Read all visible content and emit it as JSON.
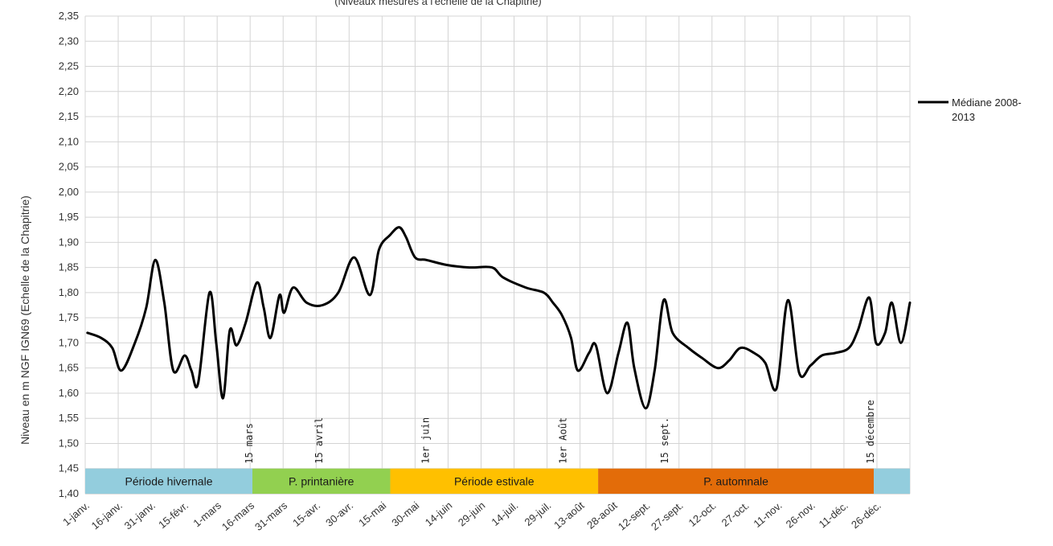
{
  "chart_data": {
    "type": "line",
    "title": "(Niveaux mesurés à l'échelle de la Chapitrie)",
    "ylabel": "Niveau en m NGF IGN69 (Echelle de la Chapitrie)",
    "xlabel": "",
    "ylim": [
      1.4,
      2.35
    ],
    "ytick_step": 0.05,
    "grid": true,
    "legend_position": "right",
    "x_tick_labels": [
      "1-janv.",
      "16-janv.",
      "31-janv.",
      "15-févr.",
      "1-mars",
      "16-mars",
      "31-mars",
      "15-avr.",
      "30-avr.",
      "15-mai",
      "30-mai",
      "14-juin",
      "29-juin",
      "14-juil.",
      "29-juil.",
      "13-août",
      "28-août",
      "12-sept.",
      "27-sept.",
      "12-oct.",
      "27-oct.",
      "11-nov.",
      "26-nov.",
      "11-déc.",
      "26-déc."
    ],
    "series": [
      {
        "name": "Médiane 2008-2013",
        "color": "#000000",
        "points": [
          [
            1,
            1.72
          ],
          [
            7,
            1.71
          ],
          [
            12,
            1.69
          ],
          [
            16,
            1.645
          ],
          [
            22,
            1.7
          ],
          [
            27,
            1.77
          ],
          [
            31,
            1.865
          ],
          [
            35,
            1.78
          ],
          [
            39,
            1.645
          ],
          [
            44,
            1.675
          ],
          [
            47,
            1.645
          ],
          [
            50,
            1.62
          ],
          [
            55,
            1.8
          ],
          [
            58,
            1.7
          ],
          [
            61,
            1.59
          ],
          [
            64,
            1.725
          ],
          [
            67,
            1.695
          ],
          [
            71,
            1.74
          ],
          [
            76,
            1.82
          ],
          [
            79,
            1.77
          ],
          [
            82,
            1.71
          ],
          [
            86,
            1.795
          ],
          [
            88,
            1.76
          ],
          [
            92,
            1.81
          ],
          [
            98,
            1.78
          ],
          [
            105,
            1.775
          ],
          [
            112,
            1.8
          ],
          [
            119,
            1.87
          ],
          [
            126,
            1.795
          ],
          [
            130,
            1.885
          ],
          [
            135,
            1.915
          ],
          [
            139,
            1.93
          ],
          [
            142,
            1.91
          ],
          [
            146,
            1.87
          ],
          [
            151,
            1.865
          ],
          [
            160,
            1.855
          ],
          [
            170,
            1.85
          ],
          [
            180,
            1.85
          ],
          [
            185,
            1.83
          ],
          [
            195,
            1.81
          ],
          [
            203,
            1.8
          ],
          [
            207,
            1.78
          ],
          [
            211,
            1.755
          ],
          [
            215,
            1.71
          ],
          [
            218,
            1.645
          ],
          [
            223,
            1.68
          ],
          [
            226,
            1.695
          ],
          [
            231,
            1.6
          ],
          [
            236,
            1.68
          ],
          [
            240,
            1.74
          ],
          [
            243,
            1.65
          ],
          [
            248,
            1.57
          ],
          [
            252,
            1.645
          ],
          [
            256,
            1.785
          ],
          [
            260,
            1.72
          ],
          [
            267,
            1.69
          ],
          [
            273,
            1.67
          ],
          [
            280,
            1.65
          ],
          [
            285,
            1.665
          ],
          [
            290,
            1.69
          ],
          [
            296,
            1.68
          ],
          [
            301,
            1.66
          ],
          [
            306,
            1.61
          ],
          [
            311,
            1.785
          ],
          [
            316,
            1.64
          ],
          [
            321,
            1.655
          ],
          [
            326,
            1.675
          ],
          [
            332,
            1.68
          ],
          [
            338,
            1.69
          ],
          [
            342,
            1.725
          ],
          [
            347,
            1.79
          ],
          [
            350,
            1.7
          ],
          [
            354,
            1.72
          ],
          [
            357,
            1.78
          ],
          [
            361,
            1.7
          ],
          [
            365,
            1.78
          ]
        ]
      }
    ],
    "annotations": [
      {
        "text": "15 mars",
        "day": 74
      },
      {
        "text": "15 avril",
        "day": 105
      },
      {
        "text": "1er juin",
        "day": 152
      },
      {
        "text": "1er Août",
        "day": 213
      },
      {
        "text": "15 sept.",
        "day": 258
      },
      {
        "text": "15 décembre",
        "day": 349
      }
    ],
    "periods": [
      {
        "label": "Période hivernale",
        "start": 0,
        "end": 74,
        "color": "#93cddd"
      },
      {
        "label": "P. printanière",
        "start": 74,
        "end": 135,
        "color": "#92d050"
      },
      {
        "label": "Période estivale",
        "start": 135,
        "end": 227,
        "color": "#ffc000"
      },
      {
        "label": "P. automnale",
        "start": 227,
        "end": 349,
        "color": "#e36c09"
      },
      {
        "label": "",
        "start": 349,
        "end": 365,
        "color": "#93cddd"
      }
    ]
  }
}
